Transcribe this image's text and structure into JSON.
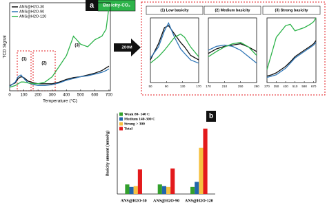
{
  "figure": {
    "panel_a": "a",
    "panel_b": "b",
    "badge": "Basicity-CO₂",
    "arrow": "ZOOM"
  },
  "chart_data": [
    {
      "type": "line",
      "ylabel": "TCD Signal",
      "xlabel": "Temperature (°C)",
      "x": [
        0,
        40,
        60,
        80,
        100,
        130,
        170,
        200,
        250,
        300,
        350,
        400,
        450,
        500,
        550,
        600,
        650,
        680,
        700
      ],
      "xlim": [
        0,
        710
      ],
      "xticks": [
        0,
        100,
        200,
        300,
        400,
        500,
        600,
        700
      ],
      "ylim": [
        0,
        100
      ],
      "legend": "upper left",
      "annotations": [
        "(1)",
        "(2)",
        "(3)"
      ],
      "series": [
        {
          "name": "ANS@H2O-30",
          "color": "#111111",
          "values": [
            6,
            9,
            14,
            16,
            15,
            11,
            9,
            8,
            8,
            8,
            10,
            13,
            15,
            16,
            18,
            20,
            23,
            26,
            28
          ]
        },
        {
          "name": "ANS@H2O-90",
          "color": "#2e75b6",
          "values": [
            5,
            10,
            16,
            18,
            14,
            9,
            7,
            6,
            6,
            7,
            9,
            12,
            14,
            16,
            17,
            19,
            21,
            23,
            25
          ]
        },
        {
          "name": "ANS@H2O-120",
          "color": "#2db34a",
          "values": [
            4,
            6,
            8,
            10,
            10,
            9,
            8,
            8,
            10,
            16,
            28,
            40,
            62,
            53,
            50,
            58,
            62,
            70,
            95
          ]
        }
      ]
    },
    {
      "type": "line",
      "title": "(1) Low basicity",
      "x": [
        50,
        70,
        85,
        95,
        110,
        125,
        135,
        150,
        170
      ],
      "xlim": [
        50,
        170
      ],
      "xticks": [
        50,
        90,
        130,
        170
      ],
      "ylim": [
        0,
        100
      ],
      "series": [
        {
          "name": "ANS@H2O-30",
          "color": "#111111",
          "values": [
            35,
            60,
            85,
            88,
            75,
            62,
            55,
            42,
            35
          ]
        },
        {
          "name": "ANS@H2O-90",
          "color": "#2e75b6",
          "values": [
            38,
            55,
            80,
            92,
            70,
            52,
            45,
            35,
            30
          ]
        },
        {
          "name": "ANS@H2O-120",
          "color": "#2db34a",
          "values": [
            30,
            40,
            50,
            58,
            70,
            75,
            70,
            55,
            40
          ]
        }
      ]
    },
    {
      "type": "line",
      "title": "(2) Medium basicity",
      "x": [
        170,
        190,
        210,
        230,
        250,
        270,
        290
      ],
      "xlim": [
        170,
        290
      ],
      "xticks": [
        170,
        210,
        250,
        290
      ],
      "ylim": [
        0,
        100
      ],
      "series": [
        {
          "name": "ANS@H2O-30",
          "color": "#111111",
          "values": [
            45,
            52,
            56,
            58,
            60,
            55,
            48
          ]
        },
        {
          "name": "ANS@H2O-90",
          "color": "#2e75b6",
          "values": [
            50,
            56,
            58,
            56,
            50,
            40,
            30
          ]
        },
        {
          "name": "ANS@H2O-120",
          "color": "#2db34a",
          "values": [
            40,
            48,
            55,
            60,
            62,
            55,
            42
          ]
        }
      ]
    },
    {
      "type": "line",
      "title": "(3) Strong basicity",
      "x": [
        270,
        310,
        350,
        430,
        470,
        510,
        590,
        640,
        670,
        690
      ],
      "xlim": [
        270,
        690
      ],
      "xticks": [
        270,
        350,
        430,
        510,
        590,
        670
      ],
      "ylim": [
        0,
        100
      ],
      "series": [
        {
          "name": "ANS@H2O-30",
          "color": "#111111",
          "values": [
            10,
            12,
            15,
            25,
            32,
            40,
            50,
            56,
            60,
            65
          ]
        },
        {
          "name": "ANS@H2O-90",
          "color": "#2e75b6",
          "values": [
            8,
            10,
            12,
            22,
            30,
            38,
            48,
            54,
            58,
            62
          ]
        },
        {
          "name": "ANS@H2O-120",
          "color": "#2db34a",
          "values": [
            20,
            45,
            70,
            88,
            90,
            80,
            85,
            90,
            94,
            100
          ]
        }
      ]
    },
    {
      "type": "bar",
      "ylabel": "Basicity amount (mmol/g)",
      "categories": [
        "ANS@H2O-30",
        "ANS@H2O-90",
        "ANS@H2O-120"
      ],
      "ylim": [
        0,
        2.2
      ],
      "legend": "upper left",
      "series": [
        {
          "name": "Weak 80- 140 C",
          "color": "#33a02c",
          "values": [
            0.3,
            0.3,
            0.22
          ]
        },
        {
          "name": "Medium 140-300 C",
          "color": "#2166ac",
          "values": [
            0.22,
            0.25,
            0.38
          ]
        },
        {
          "name": "Strong > 300",
          "color": "#f6c141",
          "values": [
            0.25,
            0.22,
            1.45
          ]
        },
        {
          "name": "Total",
          "color": "#e31a1c",
          "values": [
            0.77,
            0.8,
            2.05
          ]
        }
      ]
    }
  ]
}
